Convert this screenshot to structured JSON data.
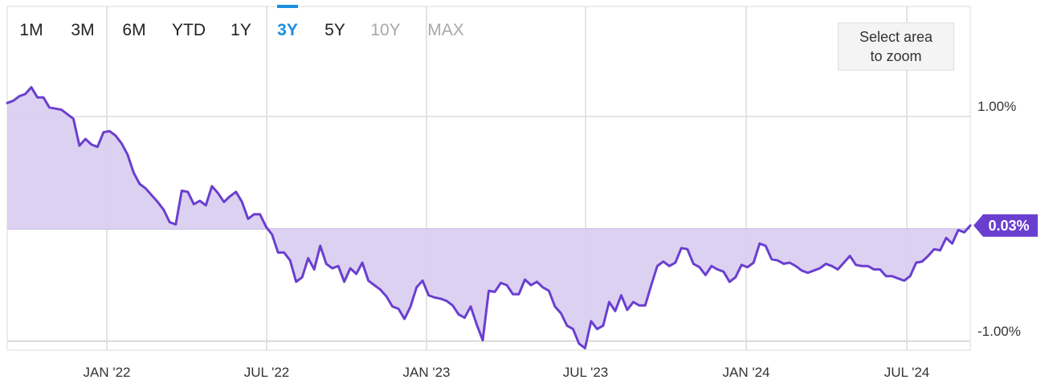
{
  "range_selector": {
    "options": [
      {
        "label": "1M",
        "state": "normal"
      },
      {
        "label": "3M",
        "state": "normal"
      },
      {
        "label": "6M",
        "state": "normal"
      },
      {
        "label": "YTD",
        "state": "normal"
      },
      {
        "label": "1Y",
        "state": "normal"
      },
      {
        "label": "3Y",
        "state": "active"
      },
      {
        "label": "5Y",
        "state": "normal"
      },
      {
        "label": "10Y",
        "state": "disabled"
      },
      {
        "label": "MAX",
        "state": "disabled"
      }
    ]
  },
  "zoom_hint": {
    "text": "Select area\nto zoom"
  },
  "colors": {
    "line": "#6a3fcf",
    "fill": "#d9ccf0",
    "active": "#1a8fe3",
    "disabled": "#a8a8a8",
    "text": "#222222",
    "grid": "#dcdcdc",
    "badge_bg": "#6a3fcf",
    "badge_text": "#ffffff"
  },
  "chart_data": {
    "type": "area",
    "x_ticks": [
      "JAN '22",
      "JUL '22",
      "JAN '23",
      "JUL '23",
      "JAN '24",
      "JUL '24"
    ],
    "y_ticks": [
      1.0,
      0,
      -1.0
    ],
    "y_tick_labels": [
      "1.00%",
      "",
      "-1.00%"
    ],
    "ylim": [
      -1.07,
      1.3
    ],
    "current_value_label": "0.03%",
    "grid": true,
    "baseline": 0,
    "series": [
      {
        "values": [
          1.12,
          1.14,
          1.18,
          1.2,
          1.26,
          1.17,
          1.17,
          1.08,
          1.07,
          1.06,
          1.02,
          0.98,
          0.74,
          0.8,
          0.75,
          0.73,
          0.86,
          0.87,
          0.83,
          0.76,
          0.66,
          0.5,
          0.4,
          0.36,
          0.3,
          0.24,
          0.17,
          0.06,
          0.04,
          0.34,
          0.33,
          0.22,
          0.25,
          0.21,
          0.38,
          0.32,
          0.24,
          0.29,
          0.33,
          0.24,
          0.09,
          0.13,
          0.13,
          0.02,
          -0.05,
          -0.21,
          -0.21,
          -0.28,
          -0.47,
          -0.43,
          -0.26,
          -0.36,
          -0.15,
          -0.31,
          -0.35,
          -0.33,
          -0.47,
          -0.35,
          -0.4,
          -0.3,
          -0.46,
          -0.5,
          -0.54,
          -0.6,
          -0.69,
          -0.71,
          -0.8,
          -0.69,
          -0.52,
          -0.46,
          -0.59,
          -0.61,
          -0.62,
          -0.64,
          -0.68,
          -0.76,
          -0.79,
          -0.69,
          -0.85,
          -0.99,
          -0.55,
          -0.56,
          -0.48,
          -0.5,
          -0.58,
          -0.58,
          -0.45,
          -0.5,
          -0.47,
          -0.52,
          -0.55,
          -0.69,
          -0.75,
          -0.86,
          -0.89,
          -1.02,
          -1.06,
          -0.82,
          -0.89,
          -0.86,
          -0.65,
          -0.73,
          -0.59,
          -0.72,
          -0.65,
          -0.68,
          -0.68,
          -0.5,
          -0.33,
          -0.29,
          -0.33,
          -0.3,
          -0.17,
          -0.18,
          -0.31,
          -0.34,
          -0.41,
          -0.33,
          -0.36,
          -0.38,
          -0.47,
          -0.43,
          -0.32,
          -0.34,
          -0.3,
          -0.13,
          -0.15,
          -0.27,
          -0.28,
          -0.31,
          -0.3,
          -0.33,
          -0.37,
          -0.39,
          -0.37,
          -0.35,
          -0.31,
          -0.33,
          -0.36,
          -0.3,
          -0.24,
          -0.32,
          -0.33,
          -0.33,
          -0.36,
          -0.36,
          -0.42,
          -0.42,
          -0.44,
          -0.46,
          -0.42,
          -0.3,
          -0.29,
          -0.24,
          -0.18,
          -0.19,
          -0.08,
          -0.13,
          -0.01,
          -0.03,
          0.03
        ]
      }
    ]
  }
}
